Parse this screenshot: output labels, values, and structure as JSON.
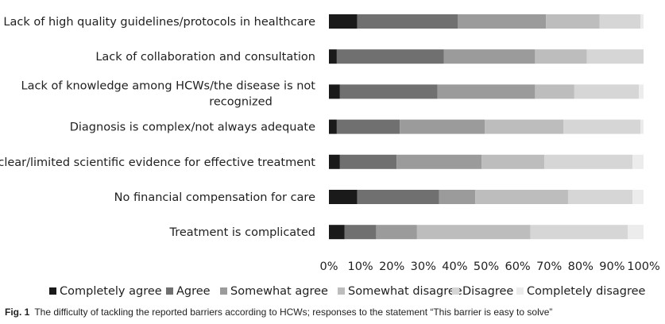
{
  "chart_data": {
    "type": "bar",
    "orientation": "horizontal",
    "stacked": true,
    "percent": true,
    "categories": [
      "Lack of high quality guidelines/protocols in healthcare",
      "Lack of collaboration and consultation",
      "Lack of knowledge among HCWs/the disease is not recognized",
      "Diagnosis is complex/not always adequate",
      "Unclear/limited scientific evidence for effective treatment",
      "No financial compensation for care",
      "Treatment is complicated"
    ],
    "category_lines": [
      [
        "Lack of high quality guidelines/protocols in healthcare"
      ],
      [
        "Lack of collaboration and consultation"
      ],
      [
        "Lack of knowledge among HCWs/the disease is not",
        "recognized"
      ],
      [
        "Diagnosis is complex/not always adequate"
      ],
      [
        "Unclear/limited scientific evidence for effective treatment"
      ],
      [
        "No financial compensation for care"
      ],
      [
        "Treatment is complicated"
      ]
    ],
    "series": [
      {
        "name": "Completely agree",
        "color": "#1a1a1a",
        "values": [
          9,
          2.5,
          3.5,
          2.5,
          3.5,
          9,
          5
        ]
      },
      {
        "name": "Agree",
        "color": "#707070",
        "values": [
          32,
          34,
          31,
          20,
          18,
          26,
          10
        ]
      },
      {
        "name": "Somewhat agree",
        "color": "#9b9b9b",
        "values": [
          28,
          29,
          31,
          27,
          27,
          11.5,
          13
        ]
      },
      {
        "name": "Somewhat disagree",
        "color": "#bdbdbd",
        "values": [
          17,
          16.5,
          12.5,
          25,
          20,
          29.5,
          36
        ]
      },
      {
        "name": "Disagree",
        "color": "#d6d6d6",
        "values": [
          13,
          18,
          20.5,
          24.5,
          28,
          20.5,
          31
        ]
      },
      {
        "name": "Completely disagree",
        "color": "#ececec",
        "values": [
          1,
          0,
          1.5,
          1,
          3.5,
          3.5,
          5
        ]
      }
    ],
    "x_ticks": [
      "0%",
      "10%",
      "20%",
      "30%",
      "40%",
      "50%",
      "60%",
      "70%",
      "80%",
      "90%",
      "100%"
    ],
    "xlim": [
      0,
      100
    ],
    "grid": false,
    "legend_position": "bottom"
  },
  "caption": {
    "label": "Fig. 1",
    "text": "The difficulty of tackling the reported barriers according to HCWs; responses to the statement “This barrier is easy to solve”"
  }
}
